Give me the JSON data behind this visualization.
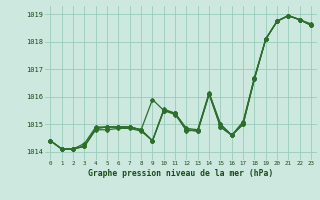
{
  "xlabel": "Graphe pression niveau de la mer (hPa)",
  "bg_color": "#cce8df",
  "grid_color": "#99ccbb",
  "line_color": "#2d6e2d",
  "ylim": [
    1013.7,
    1019.3
  ],
  "xlim": [
    -0.5,
    23.5
  ],
  "yticks": [
    1014,
    1015,
    1016,
    1017,
    1018,
    1019
  ],
  "xticks": [
    0,
    1,
    2,
    3,
    4,
    5,
    6,
    7,
    8,
    9,
    10,
    11,
    12,
    13,
    14,
    15,
    16,
    17,
    18,
    19,
    20,
    21,
    22,
    23
  ],
  "series": [
    [
      1014.4,
      1014.1,
      1014.1,
      1014.2,
      1014.8,
      1014.8,
      1014.85,
      1014.85,
      1014.75,
      1014.4,
      1015.55,
      1015.4,
      1014.8,
      1014.75,
      1016.1,
      1015.0,
      1014.6,
      1015.05,
      1016.65,
      1018.1,
      1018.75,
      1018.95,
      1018.8,
      1018.6
    ],
    [
      1014.4,
      1014.1,
      1014.1,
      1014.2,
      1014.85,
      1014.9,
      1014.9,
      1014.9,
      1014.8,
      1015.9,
      1015.5,
      1015.4,
      1014.85,
      1014.8,
      1016.15,
      1015.0,
      1014.6,
      1015.1,
      1016.7,
      1018.1,
      1018.75,
      1018.95,
      1018.8,
      1018.6
    ],
    [
      1014.4,
      1014.1,
      1014.1,
      1014.2,
      1014.85,
      1014.9,
      1014.9,
      1014.9,
      1014.8,
      1014.4,
      1015.5,
      1015.35,
      1014.8,
      1014.75,
      1016.1,
      1014.9,
      1014.6,
      1015.0,
      1016.65,
      1018.1,
      1018.75,
      1018.95,
      1018.8,
      1018.6
    ],
    [
      1014.4,
      1014.1,
      1014.1,
      1014.3,
      1014.9,
      1014.9,
      1014.9,
      1014.9,
      1014.8,
      1014.4,
      1015.5,
      1015.4,
      1014.75,
      1014.8,
      1016.1,
      1014.9,
      1014.6,
      1015.0,
      1016.7,
      1018.1,
      1018.75,
      1018.95,
      1018.8,
      1018.65
    ]
  ]
}
